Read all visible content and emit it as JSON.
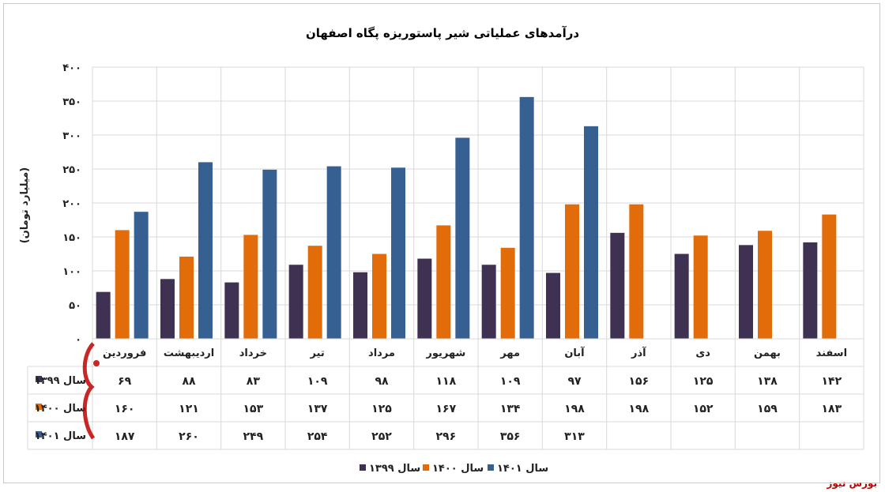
{
  "chart_data": {
    "type": "bar",
    "title": "درآمدهای عملیاتی شیر پاستوریزه پگاه اصفهان",
    "ylabel": "(میلیارد تومان)",
    "xlabel": "",
    "ylim": [
      0,
      400
    ],
    "yticks": [
      "۰",
      "۵۰",
      "۱۰۰",
      "۱۵۰",
      "۲۰۰",
      "۲۵۰",
      "۳۰۰",
      "۳۵۰",
      "۴۰۰"
    ],
    "grid": true,
    "legend_position": "bottom",
    "categories": [
      "فروردین",
      "اردیبهشت",
      "خرداد",
      "تیر",
      "مرداد",
      "شهریور",
      "مهر",
      "آبان",
      "آذر",
      "دی",
      "بهمن",
      "اسفند"
    ],
    "series": [
      {
        "name": "سال ۱۳۹۹",
        "color": "#3f3151",
        "values": [
          69,
          88,
          83,
          109,
          98,
          118,
          109,
          97,
          156,
          125,
          138,
          142
        ],
        "labels": [
          "۶۹",
          "۸۸",
          "۸۳",
          "۱۰۹",
          "۹۸",
          "۱۱۸",
          "۱۰۹",
          "۹۷",
          "۱۵۶",
          "۱۲۵",
          "۱۳۸",
          "۱۴۲"
        ]
      },
      {
        "name": "سال ۱۴۰۰",
        "color": "#e36c0a",
        "values": [
          160,
          121,
          153,
          137,
          125,
          167,
          134,
          198,
          198,
          152,
          159,
          183
        ],
        "labels": [
          "۱۶۰",
          "۱۲۱",
          "۱۵۳",
          "۱۳۷",
          "۱۲۵",
          "۱۶۷",
          "۱۳۴",
          "۱۹۸",
          "۱۹۸",
          "۱۵۲",
          "۱۵۹",
          "۱۸۳"
        ]
      },
      {
        "name": "سال ۱۴۰۱",
        "color": "#376092",
        "values": [
          187,
          260,
          249,
          254,
          252,
          296,
          356,
          313,
          null,
          null,
          null,
          null
        ],
        "labels": [
          "۱۸۷",
          "۲۶۰",
          "۲۴۹",
          "۲۵۴",
          "۲۵۲",
          "۲۹۶",
          "۳۵۶",
          "۳۱۳",
          "",
          "",
          "",
          ""
        ]
      }
    ]
  },
  "source": "بورس نیوز"
}
